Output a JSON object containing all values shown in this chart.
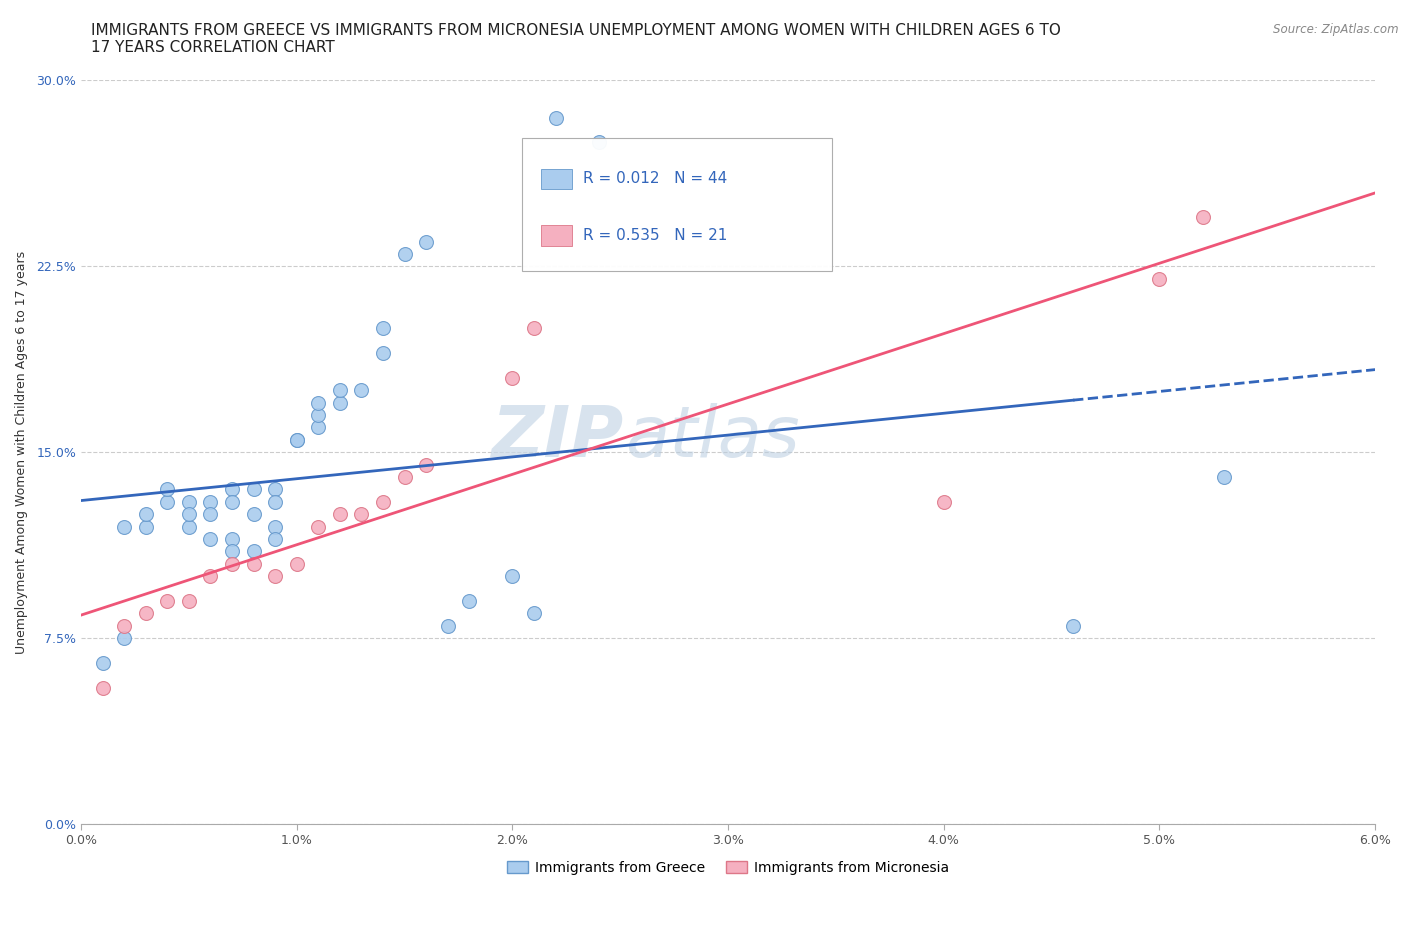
{
  "title_line1": "IMMIGRANTS FROM GREECE VS IMMIGRANTS FROM MICRONESIA UNEMPLOYMENT AMONG WOMEN WITH CHILDREN AGES 6 TO",
  "title_line2": "17 YEARS CORRELATION CHART",
  "source": "Source: ZipAtlas.com",
  "ylabel": "Unemployment Among Women with Children Ages 6 to 17 years",
  "xlim": [
    0.0,
    0.06
  ],
  "ylim": [
    0.0,
    0.3
  ],
  "xticks": [
    0.0,
    0.01,
    0.02,
    0.03,
    0.04,
    0.05,
    0.06
  ],
  "xtick_labels": [
    "0.0%",
    "1.0%",
    "2.0%",
    "3.0%",
    "4.0%",
    "5.0%",
    "6.0%"
  ],
  "yticks": [
    0.0,
    0.075,
    0.15,
    0.225,
    0.3
  ],
  "ytick_labels": [
    "0.0%",
    "7.5%",
    "15.0%",
    "22.5%",
    "30.0%"
  ],
  "greece_color": "#aaccee",
  "greece_edge_color": "#6699cc",
  "micronesia_color": "#f5b0c0",
  "micronesia_edge_color": "#dd7788",
  "greece_line_color": "#3366bb",
  "micronesia_line_color": "#ee5577",
  "watermark_part1": "ZIP",
  "watermark_part2": "atlas",
  "legend_r_greece": "0.012",
  "legend_n_greece": "44",
  "legend_r_micronesia": "0.535",
  "legend_n_micronesia": "21",
  "greece_x": [
    0.001,
    0.002,
    0.002,
    0.003,
    0.003,
    0.004,
    0.004,
    0.005,
    0.005,
    0.005,
    0.006,
    0.006,
    0.006,
    0.007,
    0.007,
    0.007,
    0.007,
    0.008,
    0.008,
    0.008,
    0.009,
    0.009,
    0.009,
    0.009,
    0.01,
    0.01,
    0.011,
    0.011,
    0.011,
    0.012,
    0.012,
    0.013,
    0.014,
    0.014,
    0.015,
    0.016,
    0.017,
    0.018,
    0.02,
    0.021,
    0.022,
    0.024,
    0.046,
    0.053
  ],
  "greece_y": [
    0.065,
    0.075,
    0.12,
    0.12,
    0.125,
    0.13,
    0.135,
    0.13,
    0.12,
    0.125,
    0.13,
    0.125,
    0.115,
    0.135,
    0.13,
    0.115,
    0.11,
    0.135,
    0.125,
    0.11,
    0.135,
    0.13,
    0.12,
    0.115,
    0.155,
    0.155,
    0.16,
    0.165,
    0.17,
    0.17,
    0.175,
    0.175,
    0.19,
    0.2,
    0.23,
    0.235,
    0.08,
    0.09,
    0.1,
    0.085,
    0.285,
    0.275,
    0.08,
    0.14
  ],
  "micronesia_x": [
    0.001,
    0.002,
    0.003,
    0.004,
    0.005,
    0.006,
    0.007,
    0.008,
    0.009,
    0.01,
    0.011,
    0.012,
    0.013,
    0.014,
    0.015,
    0.016,
    0.02,
    0.021,
    0.04,
    0.05,
    0.052
  ],
  "micronesia_y": [
    0.055,
    0.08,
    0.085,
    0.09,
    0.09,
    0.1,
    0.105,
    0.105,
    0.1,
    0.105,
    0.12,
    0.125,
    0.125,
    0.13,
    0.14,
    0.145,
    0.18,
    0.2,
    0.13,
    0.22,
    0.245
  ],
  "background_color": "#ffffff",
  "grid_color": "#cccccc",
  "title_fontsize": 11,
  "axis_label_fontsize": 9,
  "tick_fontsize": 9,
  "legend_fontsize": 11,
  "marker_size": 10
}
